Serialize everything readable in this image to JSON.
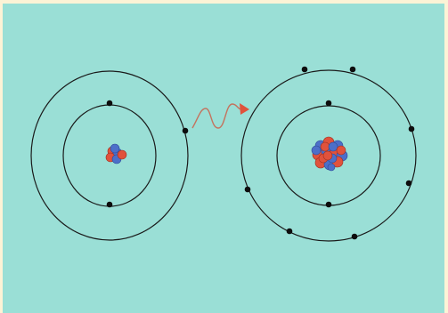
{
  "colors": {
    "background": "#9adfd6",
    "frame": "#fdf3d6",
    "orbit": "#1a1a1a",
    "electron": "#0d0d0d",
    "proton": "#e0523c",
    "neutron": "#4c6fc9",
    "photon": "#c4735e",
    "arrowhead": "#e0523c"
  },
  "icons": {
    "photon": "wavy-photon-arrow-icon"
  },
  "atoms": [
    {
      "name": "left-atom",
      "nucleus": {
        "protons": 3,
        "neutrons": 3
      },
      "shells": [
        {
          "name": "inner-shell",
          "electrons": 2
        },
        {
          "name": "outer-shell",
          "electrons": 1
        }
      ]
    },
    {
      "name": "right-atom",
      "nucleus": {
        "protons": 9,
        "neutrons": 9
      },
      "shells": [
        {
          "name": "inner-shell",
          "electrons": 2
        },
        {
          "name": "outer-shell",
          "electrons": 7
        }
      ]
    }
  ]
}
